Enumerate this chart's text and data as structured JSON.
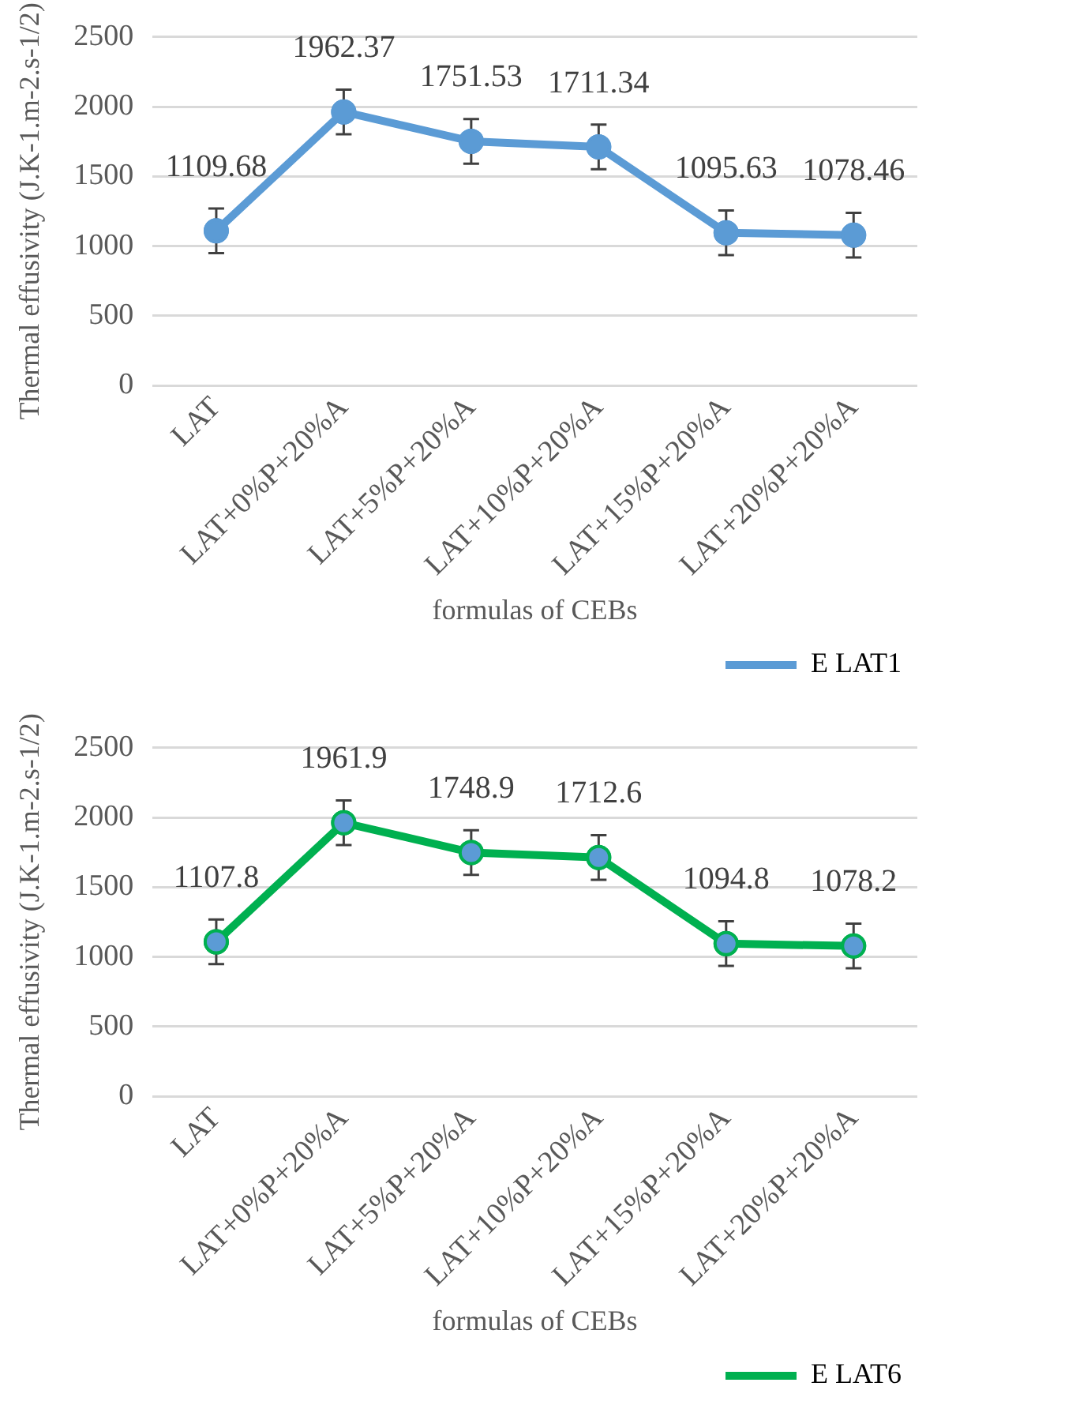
{
  "chart_data": [
    {
      "type": "line",
      "xlabel": "formulas of CEBs",
      "ylabel": "Thermal effusivity (J.K-1.m-2.s-1/2)",
      "categories": [
        "LAT",
        "LAT+0%P+20%A",
        "LAT+5%P+20%A",
        "LAT+10%P+20%A",
        "LAT+15%P+20%A",
        "LAT+20%P+20%A"
      ],
      "series": [
        {
          "name": "E LAT1",
          "color": "#5b9bd5",
          "values": [
            1109.68,
            1962.37,
            1751.53,
            1711.34,
            1095.63,
            1078.46
          ],
          "errors": [
            160,
            160,
            160,
            160,
            160,
            160
          ]
        }
      ],
      "ylim": [
        0,
        2500
      ],
      "yticks": [
        0,
        500,
        1000,
        1500,
        2000,
        2500
      ],
      "grid": "y",
      "legend": "bottom right",
      "marker": "circle",
      "line_style": "solid",
      "data_labels": true
    },
    {
      "type": "line",
      "xlabel": "formulas of CEBs",
      "ylabel": "Thermal effusivity (J.K-1.m-2.s-1/2)",
      "categories": [
        "LAT",
        "LAT+0%P+20%A",
        "LAT+5%P+20%A",
        "LAT+10%P+20%A",
        "LAT+15%P+20%A",
        "LAT+20%P+20%A"
      ],
      "series": [
        {
          "name": "E LAT6",
          "color": "#00b050",
          "colors": [
            "#5b9bd5",
            "#5b9bd5",
            "#5b9bd5",
            "#5b9bd5",
            "#5b9bd5",
            "#5b9bd5"
          ],
          "values": [
            1107.8,
            1961.9,
            1748.9,
            1712.6,
            1094.8,
            1078.2
          ],
          "errors": [
            160,
            160,
            160,
            160,
            160,
            160
          ]
        }
      ],
      "ylim": [
        0,
        2500
      ],
      "yticks": [
        0,
        500,
        1000,
        1500,
        2000,
        2500
      ],
      "grid": "y",
      "legend": "bottom right",
      "marker": "circle",
      "line_style": "solid",
      "data_labels": true
    }
  ]
}
